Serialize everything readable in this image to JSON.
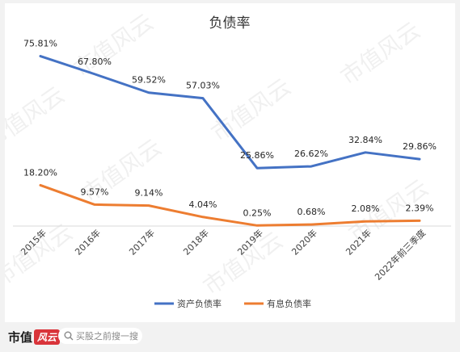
{
  "chart_data": {
    "type": "line",
    "title": "负债率",
    "categories": [
      "2015年",
      "2016年",
      "2017年",
      "2018年",
      "2019年",
      "2020年",
      "2021年",
      "2022年前三季度"
    ],
    "series": [
      {
        "name": "资产负债率",
        "color": "#4472c4",
        "values": [
          75.81,
          67.8,
          59.52,
          57.03,
          25.86,
          26.62,
          32.84,
          29.86
        ],
        "labels": [
          "75.81%",
          "67.80%",
          "59.52%",
          "57.03%",
          "25.86%",
          "26.62%",
          "32.84%",
          "29.86%"
        ]
      },
      {
        "name": "有息负债率",
        "color": "#ed7d31",
        "values": [
          18.2,
          9.57,
          9.14,
          4.04,
          0.25,
          0.68,
          2.08,
          2.39
        ],
        "labels": [
          "18.20%",
          "9.57%",
          "9.14%",
          "4.04%",
          "0.25%",
          "0.68%",
          "2.08%",
          "2.39%"
        ]
      }
    ],
    "ylim": [
      0,
      85
    ],
    "grid": false,
    "legend_position": "bottom"
  },
  "watermark": "市值风云",
  "footer": {
    "brand": "市值",
    "brand_badge": "风云",
    "search_placeholder": "买股之前搜一搜"
  }
}
